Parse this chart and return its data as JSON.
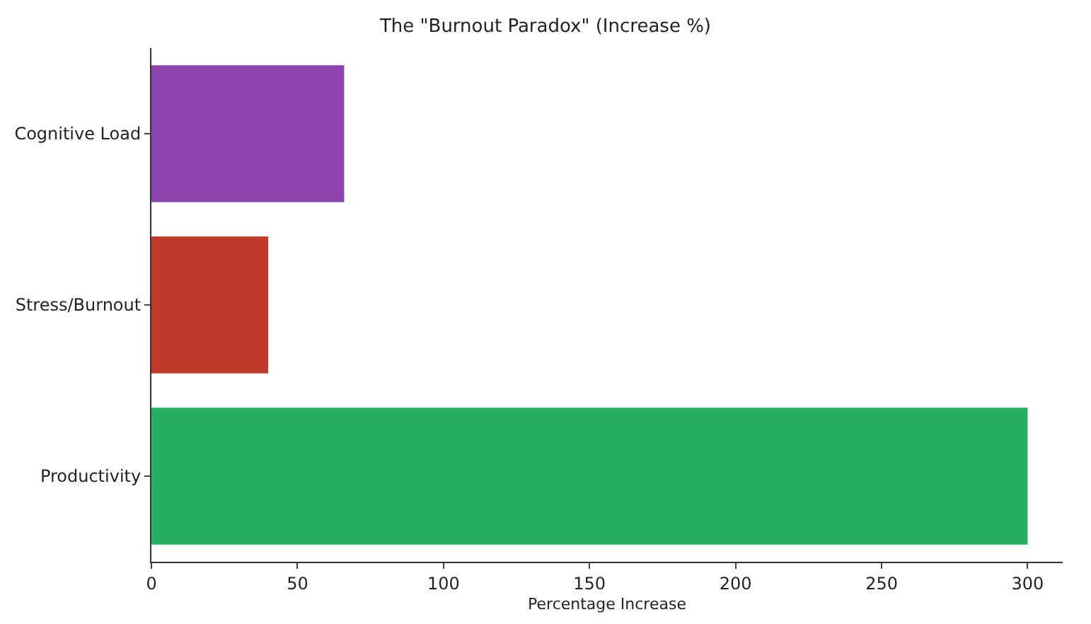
{
  "chart_data": {
    "type": "bar",
    "orientation": "horizontal",
    "title": "The \"Burnout Paradox\" (Increase %)",
    "xlabel": "Percentage Increase",
    "categories": [
      "Cognitive Load",
      "Stress/Burnout",
      "Productivity"
    ],
    "values": [
      66,
      40,
      300
    ],
    "colors": [
      "#8e44ad",
      "#c0392b",
      "#27ae60"
    ],
    "xlim": [
      0,
      312
    ],
    "xticks": [
      0,
      50,
      100,
      150,
      200,
      250,
      300
    ]
  }
}
